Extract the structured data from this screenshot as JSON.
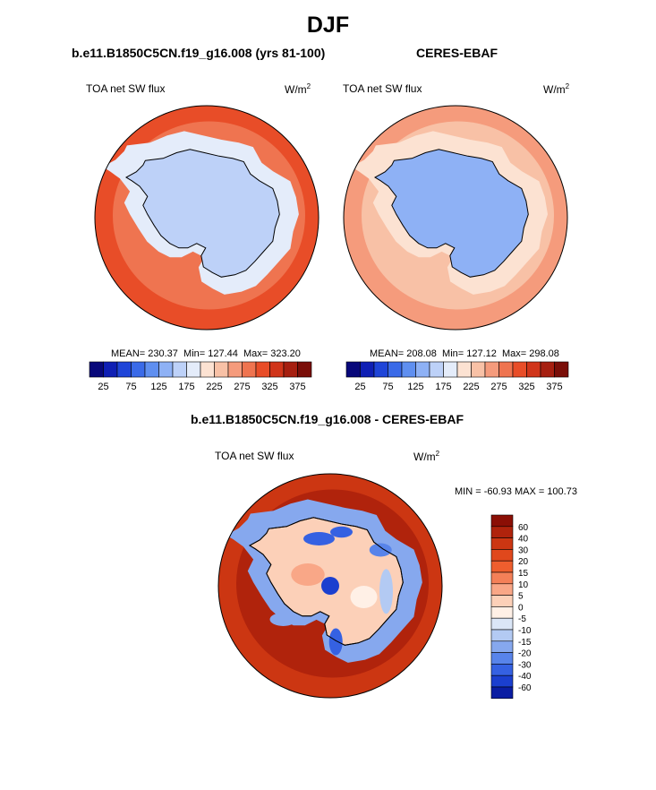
{
  "figure": {
    "season": "DJF"
  },
  "chart_data": [
    {
      "type": "heatmap",
      "projection": "south-polar-stereographic",
      "title": "b.e11.B1850C5CN.f19_g16.008 (yrs 81-100)",
      "variable": "TOA net SW flux",
      "units": "W/m",
      "units_exponent": "2",
      "stats": {
        "mean_label": "MEAN= 230.37",
        "min_label": "Min= 127.44",
        "max_label": "Max= 323.20",
        "mean": 230.37,
        "min": 127.44,
        "max": 323.2
      },
      "colorbar": {
        "levels": [
          25,
          50,
          75,
          100,
          125,
          150,
          175,
          200,
          225,
          250,
          275,
          300,
          325,
          350,
          375
        ],
        "tick_labels": [
          "25",
          "75",
          "125",
          "175",
          "225",
          "275",
          "325",
          "375"
        ],
        "colors": [
          "#08087a",
          "#0f1fb4",
          "#1f45d8",
          "#3a6ae8",
          "#5f8ff0",
          "#8eb1f5",
          "#bdd1f8",
          "#e4ecfa",
          "#fce2d2",
          "#f8c1a6",
          "#f59b7c",
          "#ef7450",
          "#e84d28",
          "#d0351a",
          "#a61f10",
          "#7a0e08"
        ]
      },
      "regions": {
        "antarctica": 150,
        "sea_ice_belt": 195,
        "southern_ocean": 275,
        "outer_ocean": 305
      }
    },
    {
      "type": "heatmap",
      "projection": "south-polar-stereographic",
      "title": "CERES-EBAF",
      "variable": "TOA net SW flux",
      "units": "W/m",
      "units_exponent": "2",
      "stats": {
        "mean_label": "MEAN= 208.08",
        "min_label": "Min= 127.12",
        "max_label": "Max= 298.08",
        "mean": 208.08,
        "min": 127.12,
        "max": 298.08
      },
      "colorbar": {
        "levels": [
          25,
          50,
          75,
          100,
          125,
          150,
          175,
          200,
          225,
          250,
          275,
          300,
          325,
          350,
          375
        ],
        "tick_labels": [
          "25",
          "75",
          "125",
          "175",
          "225",
          "275",
          "325",
          "375"
        ],
        "colors": [
          "#08087a",
          "#0f1fb4",
          "#1f45d8",
          "#3a6ae8",
          "#5f8ff0",
          "#8eb1f5",
          "#bdd1f8",
          "#e4ecfa",
          "#fce2d2",
          "#f8c1a6",
          "#f59b7c",
          "#ef7450",
          "#e84d28",
          "#d0351a",
          "#a61f10",
          "#7a0e08"
        ]
      },
      "regions": {
        "antarctica": 145,
        "sea_ice_belt": 215,
        "southern_ocean": 240,
        "outer_ocean": 260
      }
    },
    {
      "type": "heatmap",
      "projection": "south-polar-stereographic",
      "title": "b.e11.B1850C5CN.f19_g16.008 - CERES-EBAF",
      "variable": "TOA net SW flux",
      "units": "W/m",
      "units_exponent": "2",
      "stats": {
        "label": "MIN = -60.93 MAX = 100.73",
        "min": -60.93,
        "max": 100.73
      },
      "colorbar": {
        "orientation": "vertical",
        "tick_labels": [
          "60",
          "40",
          "30",
          "20",
          "15",
          "10",
          "5",
          "0",
          "-5",
          "-10",
          "-15",
          "-20",
          "-30",
          "-40",
          "-60"
        ],
        "colors": [
          "#8b0f05",
          "#b0230c",
          "#cc3612",
          "#e0481c",
          "#ee5e2e",
          "#f48058",
          "#f9a787",
          "#fcd0b8",
          "#fff0e6",
          "#dbe6f7",
          "#b3caf3",
          "#86a8ee",
          "#5884ea",
          "#3561e2",
          "#1b3fcf",
          "#0a1da3"
        ]
      },
      "regions": {
        "antarctica": 0,
        "sea_ice_belt": -20,
        "southern_ocean": 40,
        "outer_ocean": 30
      }
    }
  ]
}
